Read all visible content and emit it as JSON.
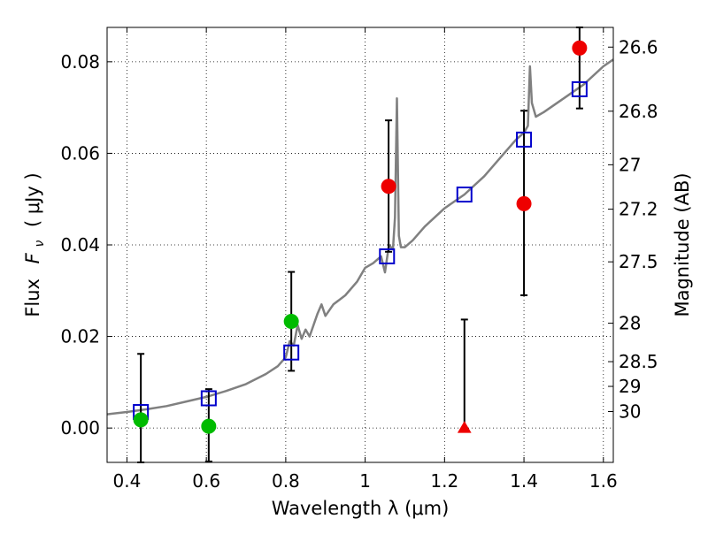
{
  "chart_data": {
    "type": "scatter",
    "xlabel": "Wavelength  λ (μm)",
    "ylabel": "Flux  F_ν  ( μJy )",
    "ylabel_parts": {
      "prefix": "Flux",
      "symbol": "F",
      "sub": "ν",
      "unit": "( μJy )"
    },
    "y2label": "Magnitude (AB)",
    "xlim": [
      0.35,
      1.625
    ],
    "ylim": [
      -0.0075,
      0.0875
    ],
    "grid": true,
    "x_ticks": [
      0.4,
      0.6,
      0.8,
      1.0,
      1.2,
      1.4,
      1.6
    ],
    "x_tick_labels": [
      "0.4",
      "0.6",
      "0.8",
      "1",
      "1.2",
      "1.4",
      "1.6"
    ],
    "y_ticks": [
      0.0,
      0.02,
      0.04,
      0.06,
      0.08
    ],
    "y_tick_labels": [
      "0.00",
      "0.02",
      "0.04",
      "0.06",
      "0.08"
    ],
    "y2_ticks": [
      {
        "label": "26.6",
        "flux": 0.0832
      },
      {
        "label": "26.8",
        "flux": 0.0692
      },
      {
        "label": "27",
        "flux": 0.0575
      },
      {
        "label": "27.2",
        "flux": 0.0478
      },
      {
        "label": "27.5",
        "flux": 0.0363
      },
      {
        "label": "28",
        "flux": 0.0229
      },
      {
        "label": "28.5",
        "flux": 0.0145
      },
      {
        "label": "29",
        "flux": 0.0091
      },
      {
        "label": "30",
        "flux": 0.0036
      }
    ],
    "colors": {
      "model": "#808080",
      "model_photometry": "#0000cc",
      "optical": "#00bb00",
      "infrared": "#ee0000",
      "errorbar": "#000000"
    },
    "model_spectrum": [
      [
        0.35,
        0.003
      ],
      [
        0.4,
        0.0035
      ],
      [
        0.45,
        0.0041
      ],
      [
        0.5,
        0.0048
      ],
      [
        0.55,
        0.0058
      ],
      [
        0.6,
        0.0068
      ],
      [
        0.65,
        0.0081
      ],
      [
        0.7,
        0.0096
      ],
      [
        0.75,
        0.0118
      ],
      [
        0.78,
        0.0135
      ],
      [
        0.8,
        0.0155
      ],
      [
        0.81,
        0.019
      ],
      [
        0.82,
        0.018
      ],
      [
        0.83,
        0.0225
      ],
      [
        0.84,
        0.0195
      ],
      [
        0.85,
        0.0215
      ],
      [
        0.86,
        0.02
      ],
      [
        0.88,
        0.025
      ],
      [
        0.89,
        0.027
      ],
      [
        0.9,
        0.0245
      ],
      [
        0.92,
        0.027
      ],
      [
        0.95,
        0.029
      ],
      [
        0.98,
        0.032
      ],
      [
        1.0,
        0.035
      ],
      [
        1.02,
        0.036
      ],
      [
        1.04,
        0.0375
      ],
      [
        1.05,
        0.034
      ],
      [
        1.06,
        0.04
      ],
      [
        1.07,
        0.039
      ],
      [
        1.075,
        0.046
      ],
      [
        1.08,
        0.072
      ],
      [
        1.085,
        0.042
      ],
      [
        1.09,
        0.0395
      ],
      [
        1.1,
        0.0395
      ],
      [
        1.12,
        0.041
      ],
      [
        1.15,
        0.044
      ],
      [
        1.2,
        0.048
      ],
      [
        1.25,
        0.051
      ],
      [
        1.3,
        0.055
      ],
      [
        1.35,
        0.06
      ],
      [
        1.38,
        0.063
      ],
      [
        1.4,
        0.0645
      ],
      [
        1.41,
        0.066
      ],
      [
        1.415,
        0.079
      ],
      [
        1.42,
        0.071
      ],
      [
        1.43,
        0.068
      ],
      [
        1.45,
        0.069
      ],
      [
        1.5,
        0.072
      ],
      [
        1.55,
        0.075
      ],
      [
        1.6,
        0.079
      ],
      [
        1.625,
        0.0805
      ]
    ],
    "model_photometry": [
      {
        "x": 0.435,
        "y": 0.0035
      },
      {
        "x": 0.606,
        "y": 0.0065
      },
      {
        "x": 0.814,
        "y": 0.0165
      },
      {
        "x": 1.055,
        "y": 0.0375
      },
      {
        "x": 1.25,
        "y": 0.051
      },
      {
        "x": 1.4,
        "y": 0.063
      },
      {
        "x": 1.54,
        "y": 0.074
      }
    ],
    "observed": [
      {
        "x": 0.435,
        "y": 0.0018,
        "err_low": -0.0075,
        "err_high": 0.0162,
        "color": "optical",
        "marker": "circle"
      },
      {
        "x": 0.606,
        "y": 0.0004,
        "err_low": -0.0073,
        "err_high": 0.0085,
        "color": "optical",
        "marker": "circle"
      },
      {
        "x": 0.814,
        "y": 0.0233,
        "err_low": 0.0125,
        "err_high": 0.0341,
        "color": "optical",
        "marker": "circle"
      },
      {
        "x": 1.059,
        "y": 0.0528,
        "err_low": 0.0385,
        "err_high": 0.0672,
        "color": "infrared",
        "marker": "circle"
      },
      {
        "x": 1.25,
        "y": 0.0,
        "err_low": 0.0,
        "err_high": 0.0237,
        "color": "infrared",
        "marker": "triangle"
      },
      {
        "x": 1.4,
        "y": 0.049,
        "err_low": 0.029,
        "err_high": 0.0693,
        "color": "infrared",
        "marker": "circle"
      },
      {
        "x": 1.54,
        "y": 0.083,
        "err_low": 0.0698,
        "err_high": 0.0875,
        "color": "infrared",
        "marker": "circle"
      }
    ]
  }
}
